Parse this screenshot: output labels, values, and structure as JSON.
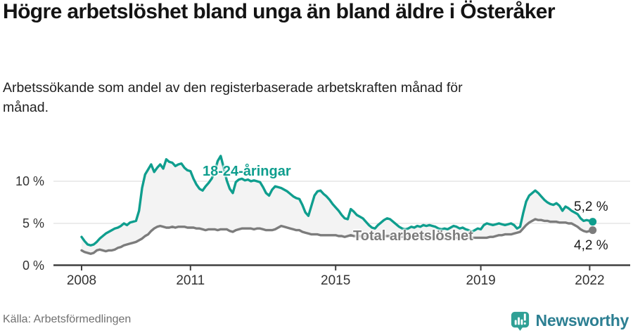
{
  "header": {
    "title": "Högre arbetslöshet bland unga än bland äldre i Österåker",
    "subtitle": "Arbetssökande som andel av den registerbaserade arbetskraften månad för månad."
  },
  "footer": {
    "source": "Källa: Arbetsförmedlingen",
    "brand": "Newsworthy"
  },
  "chart_data": {
    "type": "line",
    "x_unit": "months, monthly data Jan 2008 – Feb 2022",
    "x_start_year": 2008,
    "x_ticks": [
      2008,
      2011,
      2015,
      2019,
      2022
    ],
    "x_tick_labels": [
      "2008",
      "2011",
      "2015",
      "2019",
      "2022"
    ],
    "y_ticks": [
      0,
      5,
      10
    ],
    "y_tick_labels": [
      "0 %",
      "5 %",
      "10 %"
    ],
    "ylim": [
      0,
      13.5
    ],
    "grid": "horizontal",
    "legend_position": "inline-labels",
    "colors": {
      "grid": "#d9d9d9",
      "axis": "#3f3f3f",
      "band": "#f3f3f3",
      "annotation_text": "#1a1a1a"
    },
    "series": [
      {
        "name": "18-24-åringar",
        "color": "#0f9e8e",
        "end_label": "5,2 %",
        "last_value": 5.2,
        "values": [
          3.4,
          2.9,
          2.5,
          2.4,
          2.5,
          2.8,
          3.2,
          3.5,
          3.8,
          4.0,
          4.2,
          4.4,
          4.5,
          4.7,
          5.0,
          4.8,
          5.1,
          5.2,
          5.3,
          6.5,
          9.2,
          10.8,
          11.4,
          12.0,
          11.1,
          11.6,
          12.0,
          11.5,
          12.6,
          12.3,
          12.2,
          11.8,
          12.0,
          12.1,
          11.6,
          11.3,
          11.2,
          10.3,
          9.6,
          9.1,
          8.9,
          9.4,
          9.8,
          10.3,
          11.1,
          12.4,
          13.0,
          11.6,
          10.1,
          9.1,
          8.6,
          9.9,
          10.2,
          10.3,
          10.1,
          10.2,
          10.0,
          10.1,
          10.0,
          9.9,
          9.3,
          8.6,
          8.3,
          9.0,
          9.4,
          9.3,
          9.2,
          9.0,
          8.8,
          8.5,
          8.2,
          8.0,
          7.9,
          7.2,
          6.3,
          5.9,
          7.1,
          8.3,
          8.8,
          8.9,
          8.5,
          8.2,
          7.8,
          7.3,
          6.9,
          6.5,
          6.0,
          5.6,
          5.5,
          6.7,
          6.4,
          6.0,
          5.8,
          5.6,
          5.2,
          4.8,
          4.5,
          4.4,
          4.8,
          5.1,
          5.4,
          5.6,
          5.5,
          5.2,
          4.9,
          4.6,
          4.4,
          4.3,
          4.4,
          4.6,
          4.5,
          4.7,
          4.6,
          4.8,
          4.7,
          4.8,
          4.7,
          4.6,
          4.4,
          4.3,
          4.4,
          4.3,
          4.5,
          4.7,
          4.6,
          4.4,
          4.5,
          4.3,
          4.2,
          4.0,
          4.2,
          4.4,
          4.3,
          4.8,
          5.0,
          4.9,
          4.8,
          4.9,
          5.0,
          4.9,
          4.8,
          4.9,
          5.0,
          4.8,
          4.4,
          4.6,
          6.2,
          7.6,
          8.3,
          8.6,
          8.9,
          8.6,
          8.2,
          7.8,
          7.5,
          7.3,
          7.2,
          7.4,
          7.1,
          6.5,
          7.0,
          6.8,
          6.5,
          6.3,
          6.1,
          5.6,
          5.3,
          5.4,
          5.3,
          5.2
        ]
      },
      {
        "name": "Total arbetslöshet",
        "color": "#7c7c7c",
        "end_label": "4,2 %",
        "last_value": 4.2,
        "values": [
          1.8,
          1.6,
          1.5,
          1.4,
          1.5,
          1.8,
          1.9,
          1.8,
          1.7,
          1.8,
          1.8,
          1.9,
          2.1,
          2.2,
          2.4,
          2.5,
          2.6,
          2.7,
          2.8,
          3.0,
          3.2,
          3.5,
          3.7,
          4.1,
          4.4,
          4.6,
          4.7,
          4.6,
          4.5,
          4.5,
          4.6,
          4.5,
          4.6,
          4.6,
          4.6,
          4.5,
          4.5,
          4.5,
          4.4,
          4.4,
          4.3,
          4.2,
          4.3,
          4.3,
          4.3,
          4.2,
          4.3,
          4.3,
          4.3,
          4.1,
          4.0,
          4.2,
          4.3,
          4.4,
          4.4,
          4.4,
          4.4,
          4.3,
          4.4,
          4.4,
          4.3,
          4.2,
          4.2,
          4.2,
          4.3,
          4.5,
          4.7,
          4.6,
          4.5,
          4.4,
          4.3,
          4.2,
          4.2,
          4.0,
          3.9,
          3.8,
          3.7,
          3.7,
          3.7,
          3.6,
          3.6,
          3.6,
          3.6,
          3.6,
          3.6,
          3.5,
          3.5,
          3.4,
          3.5,
          3.6,
          3.5,
          3.5,
          3.5,
          3.4,
          3.5,
          3.4,
          3.4,
          3.4,
          3.5,
          3.5,
          3.5,
          3.5,
          3.5,
          3.4,
          3.5,
          3.4,
          3.4,
          3.4,
          3.5,
          3.4,
          3.5,
          3.4,
          3.4,
          3.4,
          3.4,
          3.3,
          3.3,
          3.3,
          3.2,
          3.3,
          3.2,
          3.3,
          3.2,
          3.3,
          3.3,
          3.3,
          3.3,
          3.3,
          3.3,
          3.3,
          3.3,
          3.3,
          3.3,
          3.3,
          3.3,
          3.4,
          3.4,
          3.5,
          3.6,
          3.6,
          3.7,
          3.7,
          3.7,
          3.8,
          3.9,
          4.0,
          4.4,
          4.8,
          5.1,
          5.3,
          5.5,
          5.4,
          5.4,
          5.3,
          5.3,
          5.2,
          5.2,
          5.2,
          5.1,
          5.1,
          5.1,
          5.0,
          5.0,
          4.8,
          4.6,
          4.3,
          4.1,
          4.0,
          4.1,
          4.2
        ]
      }
    ]
  }
}
